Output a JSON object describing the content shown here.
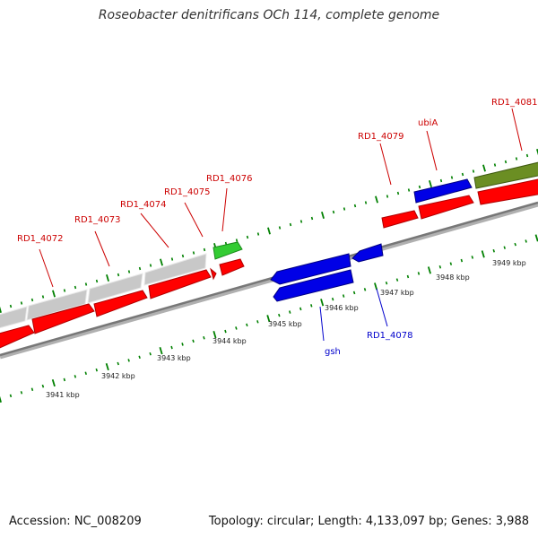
{
  "title": "Roseobacter denitrificans OCh 114, complete genome",
  "footer": {
    "accession": "Accession: NC_008209",
    "stats": "Topology: circular; Length: 4,133,097 bp; Genes: 3,988"
  },
  "colors": {
    "cds_red": "#ff0000",
    "grey_gene": "#c8c8c8",
    "blue_gene": "#0000e6",
    "green_gene": "#33cc33",
    "olive_gene": "#6b8e23",
    "label_red": "#cc0000",
    "label_blue": "#0000cc",
    "tick_green": "#008000",
    "backbone": "#777777"
  },
  "scale_labels": [
    "3941 kbp",
    "3942 kbp",
    "3943 kbp",
    "3944 kbp",
    "3945 kbp",
    "3946 kbp",
    "3947 kbp",
    "3948 kbp",
    "3949 kbp"
  ],
  "gene_labels_top": [
    "RD1_4072",
    "RD1_4073",
    "RD1_4074",
    "RD1_4075",
    "RD1_4076",
    "RD1_4079",
    "ubiA",
    "RD1_4081"
  ],
  "gene_labels_bottom": [
    "gsh",
    "RD1_4078"
  ]
}
